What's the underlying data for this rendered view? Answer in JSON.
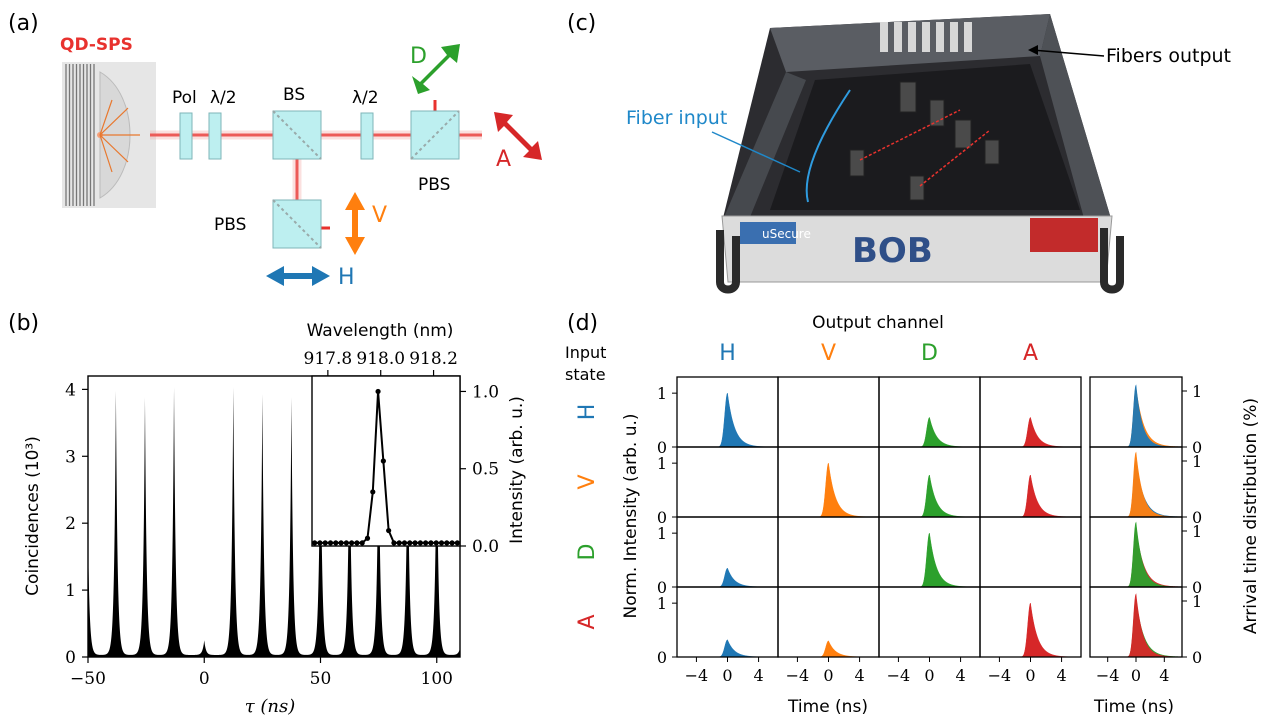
{
  "panels": {
    "a": {
      "letter": "(a)",
      "source_label": "QD-SPS",
      "components": [
        "Pol",
        "λ/2",
        "BS",
        "λ/2",
        "PBS",
        "PBS"
      ],
      "arrow_labels": {
        "D": "D",
        "A": "A",
        "V": "V",
        "H": "H"
      }
    },
    "b": {
      "letter": "(b)"
    },
    "c": {
      "letter": "(c)",
      "fiber_input": "Fiber input",
      "fibers_output": "Fibers output",
      "box_label": "BOB",
      "brand_label": "uSecure"
    },
    "d": {
      "letter": "(d)",
      "output_title": "Output channel",
      "input_title_line1": "Input",
      "input_title_line2": "state",
      "ylabel": "Norm. Intensity (arb. u.)",
      "ylabel_right": "Arrival time distribution (%)",
      "xlabel": "Time (ns)",
      "xlabel_right": "Time (ns)"
    }
  },
  "colors": {
    "H": "#1f77b4",
    "V": "#ff7f0e",
    "D": "#2ca02c",
    "A": "#d62728",
    "laser": "#e8322e",
    "beamsplitter": "#bdeff0",
    "source_label": "#e8322e",
    "fiber_input": "#1f88c9"
  },
  "chart_data": [
    {
      "type": "bar",
      "title": "",
      "xlabel": "τ (ns)",
      "ylabel": "Coincidences (10³)",
      "xlim": [
        -50,
        110
      ],
      "ylim": [
        0,
        4.2
      ],
      "xticks": [
        -50,
        0,
        50,
        100
      ],
      "xtick_labels": [
        "−50",
        "0",
        "50",
        "100"
      ],
      "yticks": [
        0,
        1,
        2,
        3,
        4
      ],
      "peak_positions_ns": [
        -50.5,
        -38,
        -25.5,
        -13,
        0,
        12.5,
        25,
        37.5,
        50,
        62.5,
        75,
        87.5,
        100,
        112.5
      ],
      "peak_heights": [
        3.55,
        3.95,
        3.85,
        4.0,
        0.22,
        4.0,
        3.9,
        3.85,
        3.6,
        3.55,
        3.5,
        3.45,
        3.4,
        3.3
      ],
      "peak_width_ns": 1.6
    },
    {
      "type": "line",
      "title": "",
      "xlabel_top": "Wavelength (nm)",
      "ylabel": "Intensity (arb. u.)",
      "xticks": [
        917.8,
        918.0,
        918.2
      ],
      "xtick_labels": [
        "917.8",
        "918.0",
        "918.2"
      ],
      "yticks": [
        0.0,
        0.5,
        1.0
      ],
      "ytick_labels": [
        "0.0",
        "0.5",
        "1.0"
      ],
      "xlim": [
        917.74,
        918.3
      ],
      "ylim": [
        0,
        1.1
      ],
      "x": [
        917.75,
        917.77,
        917.79,
        917.81,
        917.83,
        917.85,
        917.87,
        917.89,
        917.91,
        917.93,
        917.95,
        917.97,
        917.99,
        918.01,
        918.03,
        918.05,
        918.07,
        918.09,
        918.11,
        918.13,
        918.15,
        918.17,
        918.19,
        918.21,
        918.23,
        918.25,
        918.27,
        918.29
      ],
      "y": [
        0.02,
        0.02,
        0.02,
        0.02,
        0.02,
        0.02,
        0.02,
        0.02,
        0.02,
        0.02,
        0.05,
        0.35,
        1.0,
        0.55,
        0.1,
        0.02,
        0.02,
        0.02,
        0.02,
        0.02,
        0.02,
        0.02,
        0.02,
        0.02,
        0.02,
        0.02,
        0.02,
        0.02
      ]
    },
    {
      "type": "area",
      "title": "",
      "columns": [
        "H",
        "V",
        "D",
        "A"
      ],
      "rows": [
        "H",
        "V",
        "D",
        "A"
      ],
      "xlim": [
        -6.5,
        6.5
      ],
      "xticks": [
        -4,
        0,
        4
      ],
      "xtick_labels": [
        "−4",
        "0",
        "4"
      ],
      "ylim": [
        0,
        1.3
      ],
      "yticks": [
        0,
        1
      ],
      "peak_amplitude": [
        [
          1.0,
          0.0,
          0.55,
          0.55
        ],
        [
          0.0,
          1.0,
          0.78,
          0.78
        ],
        [
          0.35,
          0.0,
          1.0,
          0.0
        ],
        [
          0.32,
          0.3,
          0.0,
          1.0
        ]
      ]
    },
    {
      "type": "area",
      "title": "",
      "rows": [
        "H",
        "V",
        "D",
        "A"
      ],
      "xlim": [
        -6.5,
        6.5
      ],
      "xticks": [
        -4,
        0,
        4
      ],
      "xtick_labels": [
        "−4",
        "0",
        "4"
      ],
      "ylim": [
        0,
        1.25
      ],
      "yticks": [
        0,
        1
      ],
      "series_per_row": [
        [
          {
            "name": "H",
            "amp": 1.1,
            "width": 0.9
          },
          {
            "name": "V",
            "amp": 1.05,
            "width": 1.1
          }
        ],
        [
          {
            "name": "V",
            "amp": 1.15,
            "width": 0.95
          },
          {
            "name": "H",
            "amp": 1.0,
            "width": 1.1
          }
        ],
        [
          {
            "name": "D",
            "amp": 1.15,
            "width": 0.95
          },
          {
            "name": "A",
            "amp": 1.05,
            "width": 1.1
          }
        ],
        [
          {
            "name": "A",
            "amp": 1.12,
            "width": 0.95
          },
          {
            "name": "D",
            "amp": 1.02,
            "width": 1.1
          }
        ]
      ]
    }
  ]
}
